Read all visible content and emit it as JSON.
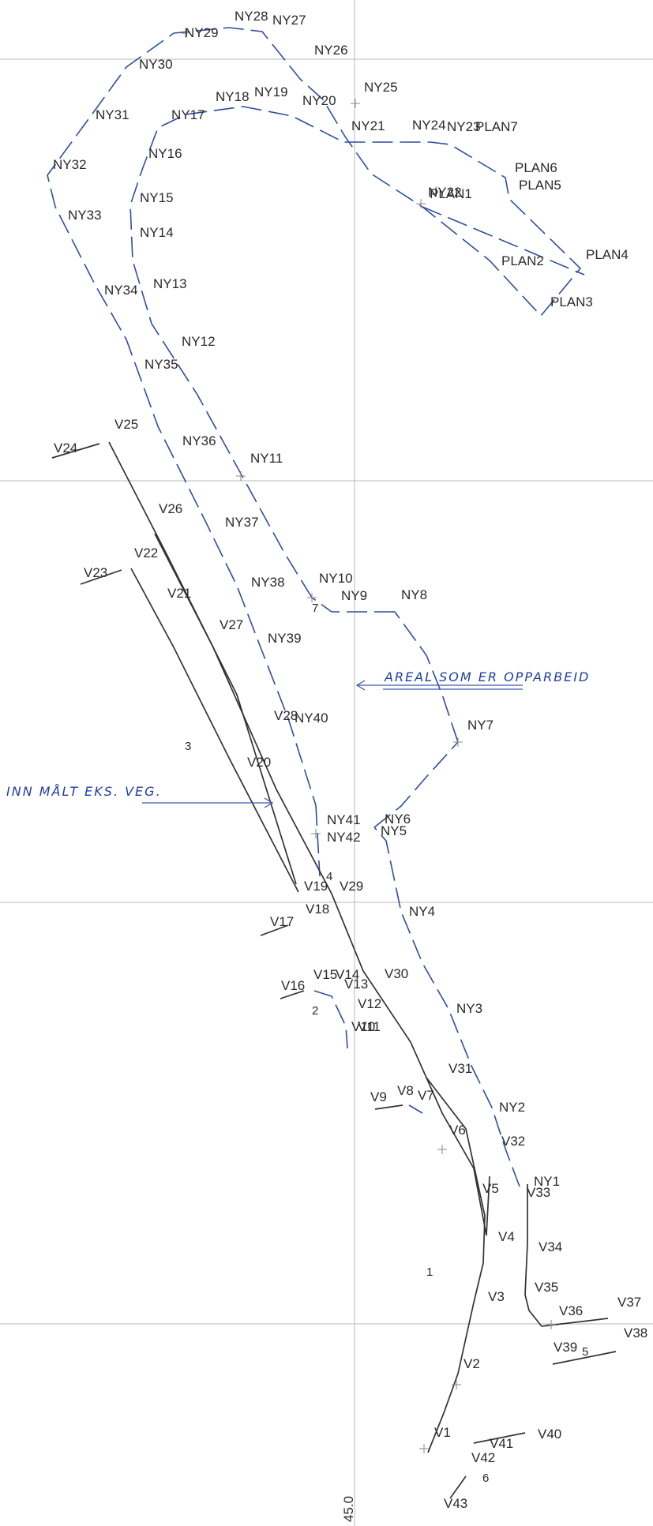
{
  "grid_label": "45.0",
  "notes": {
    "areal": "AREAL SOM ER OPPARBEID",
    "innmalt": "INN MÅLT EKS. VEG."
  },
  "areas": [
    "1",
    "2",
    "3",
    "4",
    "5",
    "6",
    "7"
  ],
  "ny_points": [
    "NY1",
    "NY2",
    "NY3",
    "NY4",
    "NY5",
    "NY6",
    "NY7",
    "NY8",
    "NY9",
    "NY10",
    "NY11",
    "NY12",
    "NY13",
    "NY14",
    "NY15",
    "NY16",
    "NY17",
    "NY18",
    "NY19",
    "NY20",
    "NY21",
    "NY22",
    "NY23",
    "NY24",
    "NY25",
    "NY26",
    "NY27",
    "NY28",
    "NY29",
    "NY30",
    "NY31",
    "NY32",
    "NY33",
    "NY34",
    "NY35",
    "NY36",
    "NY37",
    "NY38",
    "NY39",
    "NY40",
    "NY41",
    "NY42"
  ],
  "plan_points": [
    "PLAN1",
    "PLAN2",
    "PLAN3",
    "PLAN4",
    "PLAN5",
    "PLAN6",
    "PLAN7"
  ],
  "v_points": [
    "V1",
    "V2",
    "V3",
    "V4",
    "V5",
    "V6",
    "V7",
    "V8",
    "V9",
    "V10",
    "V11",
    "V12",
    "V13",
    "V14",
    "V15",
    "V16",
    "V17",
    "V18",
    "V19",
    "V20",
    "V21",
    "V22",
    "V23",
    "V24",
    "V25",
    "V26",
    "V27",
    "V28",
    "V29",
    "V30",
    "V31",
    "V32",
    "V33",
    "V34",
    "V35",
    "V36",
    "V37",
    "V38",
    "V39",
    "V40",
    "V41",
    "V42",
    "V43"
  ]
}
